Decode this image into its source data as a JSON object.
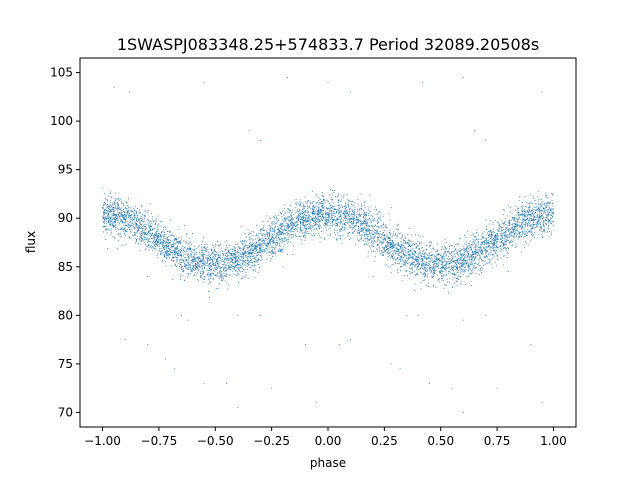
{
  "chart_data": {
    "type": "scatter",
    "title": "1SWASPJ083348.25+574833.7 Period 32089.20508s",
    "xlabel": "phase",
    "ylabel": "flux",
    "xlim": [
      -1.1,
      1.1
    ],
    "ylim": [
      68.5,
      106.5
    ],
    "x_ticks": [
      -1.0,
      -0.75,
      -0.5,
      -0.25,
      0.0,
      0.25,
      0.5,
      0.75,
      1.0
    ],
    "x_tick_labels": [
      "−1.00",
      "−0.75",
      "−0.50",
      "−0.25",
      "0.00",
      "0.25",
      "0.50",
      "0.75",
      "1.00"
    ],
    "y_ticks": [
      70,
      75,
      80,
      85,
      90,
      95,
      100,
      105
    ],
    "y_tick_labels": [
      "70",
      "75",
      "80",
      "85",
      "90",
      "95",
      "100",
      "105"
    ],
    "grid": false,
    "legend": "none",
    "marker_color": "#1f77b4",
    "model": {
      "description": "phase-folded light curve; points mirrored at phase ±1",
      "x_range": [
        -1.0,
        1.0
      ],
      "mean_flux": 87.8,
      "amplitude": 2.6,
      "max_phase": 0.0,
      "min_phase": 0.5,
      "scatter": 1.0,
      "n_points": 6000
    },
    "trend": {
      "x": [
        -1.0,
        -0.75,
        -0.5,
        -0.25,
        0.0,
        0.25,
        0.5,
        0.75,
        1.0
      ],
      "y": [
        90.4,
        87.8,
        85.2,
        87.8,
        90.4,
        87.8,
        85.2,
        87.8,
        90.4
      ]
    },
    "outliers": [
      [
        -0.95,
        103.5
      ],
      [
        -0.88,
        103.0
      ],
      [
        -0.55,
        104.0
      ],
      [
        -0.35,
        99.0
      ],
      [
        -0.3,
        98.0
      ],
      [
        -0.18,
        104.5
      ],
      [
        0.0,
        104.0
      ],
      [
        0.1,
        103.0
      ],
      [
        0.42,
        104.0
      ],
      [
        0.6,
        104.5
      ],
      [
        0.65,
        99.0
      ],
      [
        0.7,
        98.0
      ],
      [
        0.95,
        103.0
      ],
      [
        -0.65,
        80.0
      ],
      [
        -0.62,
        79.5
      ],
      [
        -0.4,
        80.0
      ],
      [
        -0.3,
        80.0
      ],
      [
        0.35,
        80.0
      ],
      [
        0.4,
        80.0
      ],
      [
        0.6,
        79.5
      ],
      [
        0.7,
        80.0
      ],
      [
        -0.9,
        77.5
      ],
      [
        -0.8,
        77.0
      ],
      [
        -0.1,
        77.0
      ],
      [
        0.05,
        77.0
      ],
      [
        0.1,
        77.5
      ],
      [
        0.9,
        77.0
      ],
      [
        -0.72,
        75.5
      ],
      [
        -0.68,
        74.5
      ],
      [
        0.28,
        75.0
      ],
      [
        0.32,
        74.5
      ],
      [
        -0.55,
        73.0
      ],
      [
        -0.45,
        73.0
      ],
      [
        -0.25,
        72.5
      ],
      [
        0.45,
        73.0
      ],
      [
        0.55,
        72.5
      ],
      [
        0.75,
        72.5
      ],
      [
        -0.4,
        70.5
      ],
      [
        -0.05,
        71.0
      ],
      [
        0.6,
        70.0
      ],
      [
        0.95,
        71.0
      ],
      [
        -0.2,
        85.0
      ],
      [
        0.2,
        84.0
      ],
      [
        -0.8,
        84.0
      ],
      [
        0.8,
        84.5
      ]
    ]
  }
}
